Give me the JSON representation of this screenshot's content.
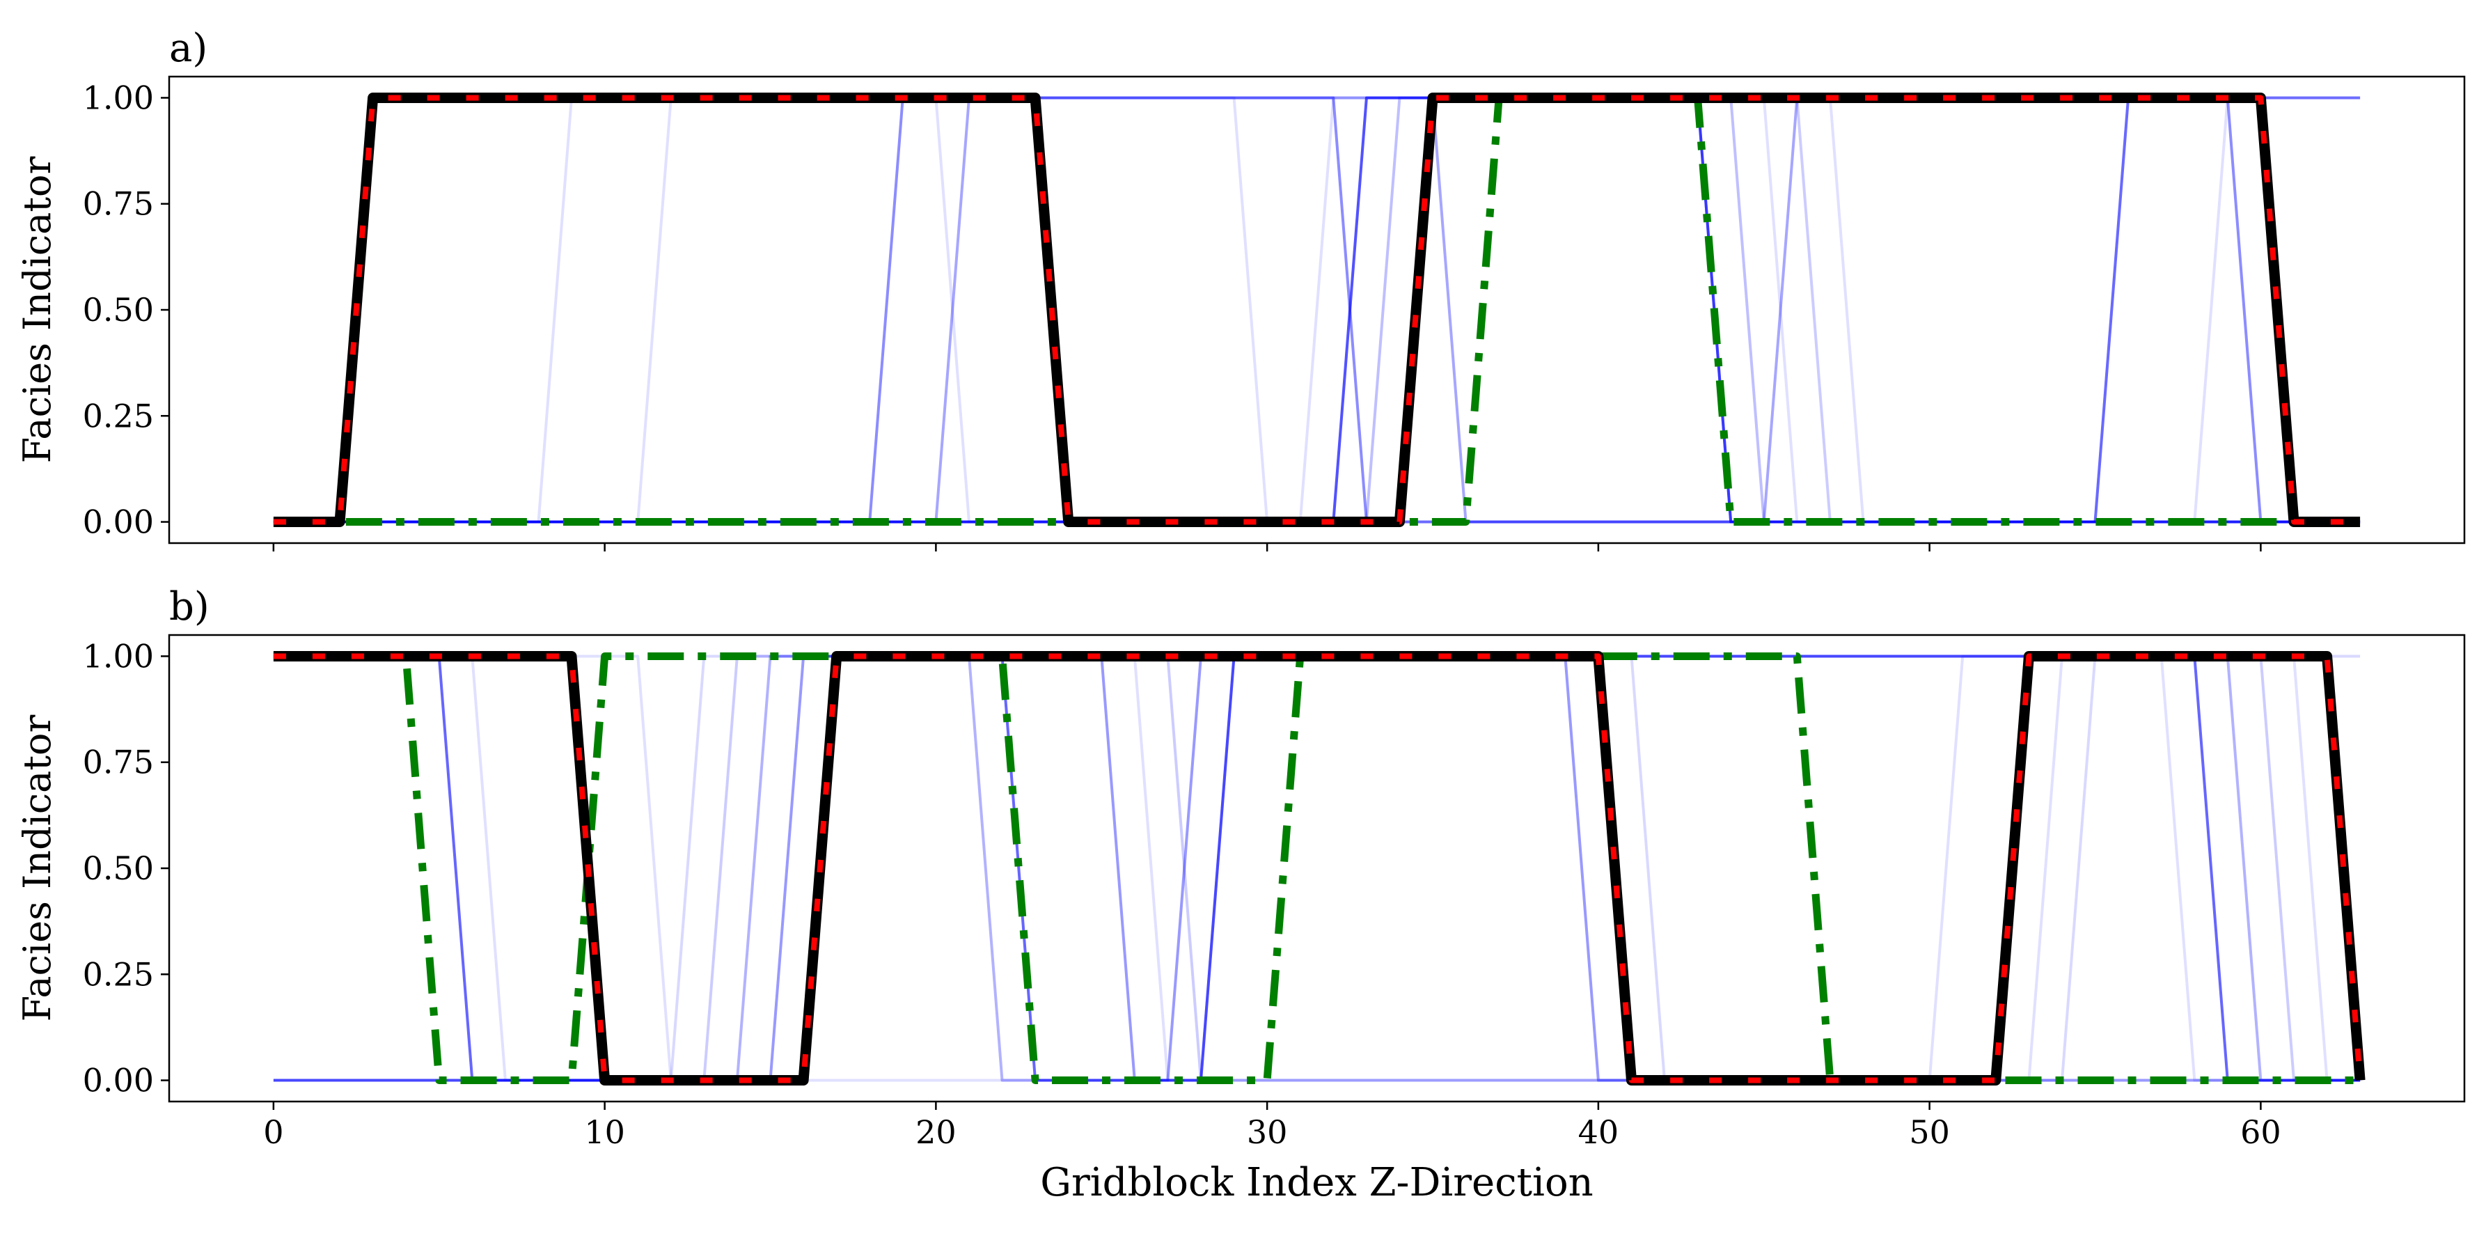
{
  "chart_data": [
    {
      "panel_label": "a)",
      "type": "line",
      "ylabel": "Facies Indicator",
      "xlabel": "",
      "xlim": [
        -3.15,
        66.15
      ],
      "ylim": [
        -0.05,
        1.05
      ],
      "xticks": [
        0,
        10,
        20,
        30,
        40,
        50,
        60
      ],
      "xtick_labels_visible": false,
      "yticks": [
        0.0,
        0.25,
        0.5,
        0.75,
        1.0
      ],
      "ytick_labels": [
        "0.00",
        "0.25",
        "0.50",
        "0.75",
        "1.00"
      ],
      "grid": false,
      "series": [
        {
          "style": "blue-faint",
          "color": "#0000ff",
          "opacity": 0.12,
          "x": [
            0,
            8,
            9,
            29,
            30,
            63
          ],
          "y": [
            0,
            0,
            1,
            1,
            0,
            0
          ]
        },
        {
          "style": "blue-faint",
          "color": "#0000ff",
          "opacity": 0.12,
          "x": [
            0,
            11,
            12,
            20,
            21,
            63
          ],
          "y": [
            0,
            0,
            1,
            1,
            0,
            0
          ]
        },
        {
          "style": "blue-faint",
          "color": "#0000ff",
          "opacity": 0.12,
          "x": [
            0,
            31,
            32,
            45,
            46,
            63
          ],
          "y": [
            0,
            0,
            1,
            1,
            0,
            0
          ]
        },
        {
          "style": "blue-faint",
          "color": "#0000ff",
          "opacity": 0.12,
          "x": [
            0,
            34,
            35,
            47,
            48,
            58,
            59,
            63
          ],
          "y": [
            0,
            0,
            1,
            1,
            0,
            0,
            1,
            1
          ]
        },
        {
          "style": "blue-faint",
          "color": "#0000ff",
          "opacity": 0.2,
          "x": [
            0,
            32,
            33,
            46,
            47,
            63
          ],
          "y": [
            0,
            0,
            1,
            1,
            0,
            0
          ]
        },
        {
          "style": "blue-faint",
          "color": "#0000ff",
          "opacity": 0.25,
          "x": [
            0,
            33,
            34,
            44,
            45,
            55,
            56,
            63
          ],
          "y": [
            0,
            0,
            1,
            1,
            0,
            0,
            1,
            1
          ]
        },
        {
          "style": "blue-faint",
          "color": "#0000ff",
          "opacity": 0.35,
          "x": [
            0,
            20,
            21,
            35,
            36,
            45,
            46,
            63
          ],
          "y": [
            0,
            0,
            1,
            1,
            0,
            0,
            1,
            1
          ]
        },
        {
          "style": "blue-faint",
          "color": "#0000ff",
          "opacity": 0.45,
          "x": [
            0,
            18,
            19,
            32,
            33,
            63
          ],
          "y": [
            0,
            0,
            1,
            1,
            0,
            0
          ]
        },
        {
          "style": "blue-faint",
          "color": "#0000ff",
          "opacity": 0.45,
          "x": [
            0,
            34,
            35,
            43,
            44,
            55,
            56,
            59,
            60,
            63
          ],
          "y": [
            0,
            0,
            1,
            1,
            0,
            0,
            1,
            1,
            0,
            0
          ]
        },
        {
          "style": "blue-main",
          "color": "#0000ff",
          "opacity": 0.6,
          "x": [
            0,
            32,
            33,
            43,
            44,
            56,
            57,
            63
          ],
          "y": [
            0,
            0,
            1,
            1,
            0,
            0,
            0,
            0
          ]
        },
        {
          "style": "green-dashdot",
          "color": "#008000",
          "opacity": 1,
          "x": [
            0,
            36,
            37,
            43,
            44,
            63
          ],
          "y": [
            0,
            0,
            1,
            1,
            0,
            0
          ]
        },
        {
          "style": "black-red",
          "color": "#000000",
          "opacity": 1,
          "x": [
            0,
            2,
            3,
            23,
            24,
            34,
            35,
            60,
            61,
            63
          ],
          "y": [
            0,
            0,
            1,
            1,
            0,
            0,
            1,
            1,
            0,
            0
          ]
        }
      ]
    },
    {
      "panel_label": "b)",
      "type": "line",
      "ylabel": "Facies Indicator",
      "xlabel": "Gridblock Index Z-Direction",
      "xlim": [
        -3.15,
        66.15
      ],
      "ylim": [
        -0.05,
        1.05
      ],
      "xticks": [
        0,
        10,
        20,
        30,
        40,
        50,
        60
      ],
      "xtick_labels": [
        "0",
        "10",
        "20",
        "30",
        "40",
        "50",
        "60"
      ],
      "xtick_labels_visible": true,
      "yticks": [
        0.0,
        0.25,
        0.5,
        0.75,
        1.0
      ],
      "ytick_labels": [
        "0.00",
        "0.25",
        "0.50",
        "0.75",
        "1.00"
      ],
      "grid": false,
      "series": [
        {
          "style": "blue-faint",
          "color": "#0000ff",
          "opacity": 0.12,
          "x": [
            0,
            6,
            7,
            16,
            17,
            26,
            27,
            50,
            51,
            61,
            62,
            63
          ],
          "y": [
            1,
            1,
            0,
            0,
            1,
            1,
            0,
            0,
            1,
            1,
            0,
            0
          ]
        },
        {
          "style": "blue-faint",
          "color": "#0000ff",
          "opacity": 0.12,
          "x": [
            0,
            11,
            12,
            41,
            42,
            53,
            54,
            57,
            58,
            63
          ],
          "y": [
            1,
            1,
            0,
            0,
            0,
            0,
            1,
            1,
            0,
            0
          ]
        },
        {
          "style": "blue-faint",
          "color": "#0000ff",
          "opacity": 0.15,
          "x": [
            0,
            12,
            13,
            41,
            42,
            54,
            55,
            63
          ],
          "y": [
            0,
            0,
            1,
            1,
            0,
            0,
            1,
            1
          ]
        },
        {
          "style": "blue-faint",
          "color": "#0000ff",
          "opacity": 0.2,
          "x": [
            0,
            13,
            14,
            27,
            28,
            39,
            40,
            52,
            53,
            60,
            61,
            63
          ],
          "y": [
            0,
            0,
            1,
            1,
            0,
            0,
            0,
            0,
            1,
            1,
            0,
            0
          ]
        },
        {
          "style": "blue-faint",
          "color": "#0000ff",
          "opacity": 0.3,
          "x": [
            0,
            14,
            15,
            21,
            22,
            28,
            29,
            59,
            60,
            63
          ],
          "y": [
            0,
            0,
            1,
            1,
            0,
            0,
            1,
            1,
            0,
            0
          ]
        },
        {
          "style": "blue-faint",
          "color": "#0000ff",
          "opacity": 0.4,
          "x": [
            0,
            15,
            16,
            25,
            26,
            27,
            28,
            39,
            40,
            63
          ],
          "y": [
            0,
            0,
            1,
            1,
            0,
            0,
            1,
            1,
            0,
            0
          ]
        },
        {
          "style": "blue-main",
          "color": "#0000ff",
          "opacity": 0.6,
          "x": [
            0,
            5,
            6,
            9,
            10,
            16,
            17,
            22,
            23,
            28,
            29,
            51,
            52,
            58,
            59,
            63
          ],
          "y": [
            1,
            1,
            0,
            0,
            0,
            0,
            1,
            1,
            0,
            0,
            1,
            1,
            1,
            1,
            0,
            0
          ]
        },
        {
          "style": "green-dashdot",
          "color": "#008000",
          "opacity": 1,
          "x": [
            0,
            4,
            5,
            9,
            10,
            22,
            23,
            30,
            31,
            46,
            47,
            63
          ],
          "y": [
            1,
            1,
            0,
            0,
            1,
            1,
            0,
            0,
            1,
            1,
            0,
            0
          ]
        },
        {
          "style": "black-red",
          "color": "#000000",
          "opacity": 1,
          "x": [
            0,
            9,
            10,
            16,
            17,
            40,
            41,
            52,
            53,
            62,
            63
          ],
          "y": [
            1,
            1,
            0,
            0,
            1,
            1,
            0,
            0,
            1,
            1,
            0
          ]
        }
      ]
    }
  ]
}
